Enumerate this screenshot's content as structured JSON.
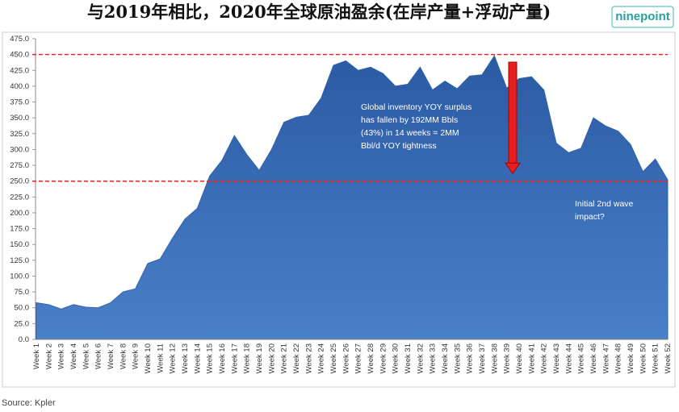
{
  "chart_data": {
    "type": "area",
    "title": "与2019年相比，2020年全球原油盈余(在岸产量+浮动产量)",
    "logo": "ninepoint",
    "source": "Source: Kpler",
    "color": "#2f63ad",
    "categories": [
      "Week 1",
      "Week 2",
      "Week 3",
      "Week 4",
      "Week 5",
      "Week 6",
      "Week 7",
      "Week 8",
      "Week 9",
      "Week 10",
      "Week 11",
      "Week 12",
      "Week 13",
      "Week 14",
      "Week 15",
      "Week 16",
      "Week 17",
      "Week 18",
      "Week 19",
      "Week 20",
      "Week 21",
      "Week 22",
      "Week 23",
      "Week 24",
      "Week 25",
      "Week 26",
      "Week 27",
      "Week 28",
      "Week 29",
      "Week 30",
      "Week 31",
      "Week 32",
      "Week 33",
      "Week 34",
      "Week 35",
      "Week 36",
      "Week 37",
      "Week 38",
      "Week 39",
      "Week 40",
      "Week 41",
      "Week 42",
      "Week 43",
      "Week 44",
      "Week 45",
      "Week 46",
      "Week 47",
      "Week 48",
      "Week 49",
      "Week 50",
      "Week 51",
      "Week 52"
    ],
    "values": [
      58,
      55,
      48,
      55,
      51,
      50,
      58,
      75,
      80,
      120,
      127,
      160,
      190,
      207,
      258,
      283,
      322,
      292,
      267,
      300,
      343,
      351,
      354,
      381,
      433,
      440,
      425,
      430,
      420,
      400,
      403,
      430,
      394,
      408,
      396,
      416,
      418,
      448,
      397,
      412,
      415,
      394,
      310,
      295,
      302,
      350,
      337,
      329,
      308,
      265,
      285,
      252
    ],
    "ylim": [
      0,
      475
    ],
    "yticks": [
      {
        "value": 0,
        "label": "0.0"
      },
      {
        "value": 25,
        "label": "25.0"
      },
      {
        "value": 50,
        "label": "50.0"
      },
      {
        "value": 75,
        "label": "75.0"
      },
      {
        "value": 100,
        "label": "100.0"
      },
      {
        "value": 125,
        "label": "125.0"
      },
      {
        "value": 150,
        "label": "150.0"
      },
      {
        "value": 175,
        "label": "175.0"
      },
      {
        "value": 200,
        "label": "200.0"
      },
      {
        "value": 225,
        "label": "225.0"
      },
      {
        "value": 250,
        "label": "250.0"
      },
      {
        "value": 275,
        "label": "275.0"
      },
      {
        "value": 300,
        "label": "300.0"
      },
      {
        "value": 325,
        "label": "325.0"
      },
      {
        "value": 350,
        "label": "350.0"
      },
      {
        "value": 375,
        "label": "375.0"
      },
      {
        "value": 400,
        "label": "400.0"
      },
      {
        "value": 425,
        "label": "425.0"
      },
      {
        "value": 450,
        "label": "450.0"
      },
      {
        "value": 475,
        "label": "475.0"
      }
    ],
    "reference_lines": [
      450,
      250
    ],
    "reference_color": "#e8262a",
    "arrow": {
      "from": 438,
      "to": 262
    },
    "annotations": [
      {
        "lines": [
          "Global inventory YOY surplus",
          "has fallen by 192MM Bbls",
          "(43%) in 14 weeks =  2MM",
          "Bbl/d YOY tightness"
        ]
      },
      {
        "lines": [
          "Initial 2nd wave",
          "impact?"
        ]
      }
    ]
  }
}
